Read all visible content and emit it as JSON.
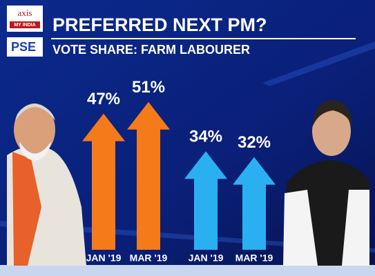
{
  "brand": {
    "axis": "axis",
    "myindia": "MY INDIA",
    "channel": "PSE"
  },
  "chart_data": {
    "type": "arrow-bar",
    "title": "PREFERRED NEXT PM?",
    "subtitle": "VOTE SHARE: FARM LABOURER",
    "categories": [
      "JAN '19",
      "MAR '19",
      "JAN '19",
      "MAR '19"
    ],
    "values": [
      47,
      51,
      34,
      32
    ],
    "value_labels": [
      "47%",
      "51%",
      "34%",
      "32%"
    ],
    "colors": [
      "#f47a1a",
      "#f47a1a",
      "#2ab0f0",
      "#2ab0f0"
    ]
  }
}
